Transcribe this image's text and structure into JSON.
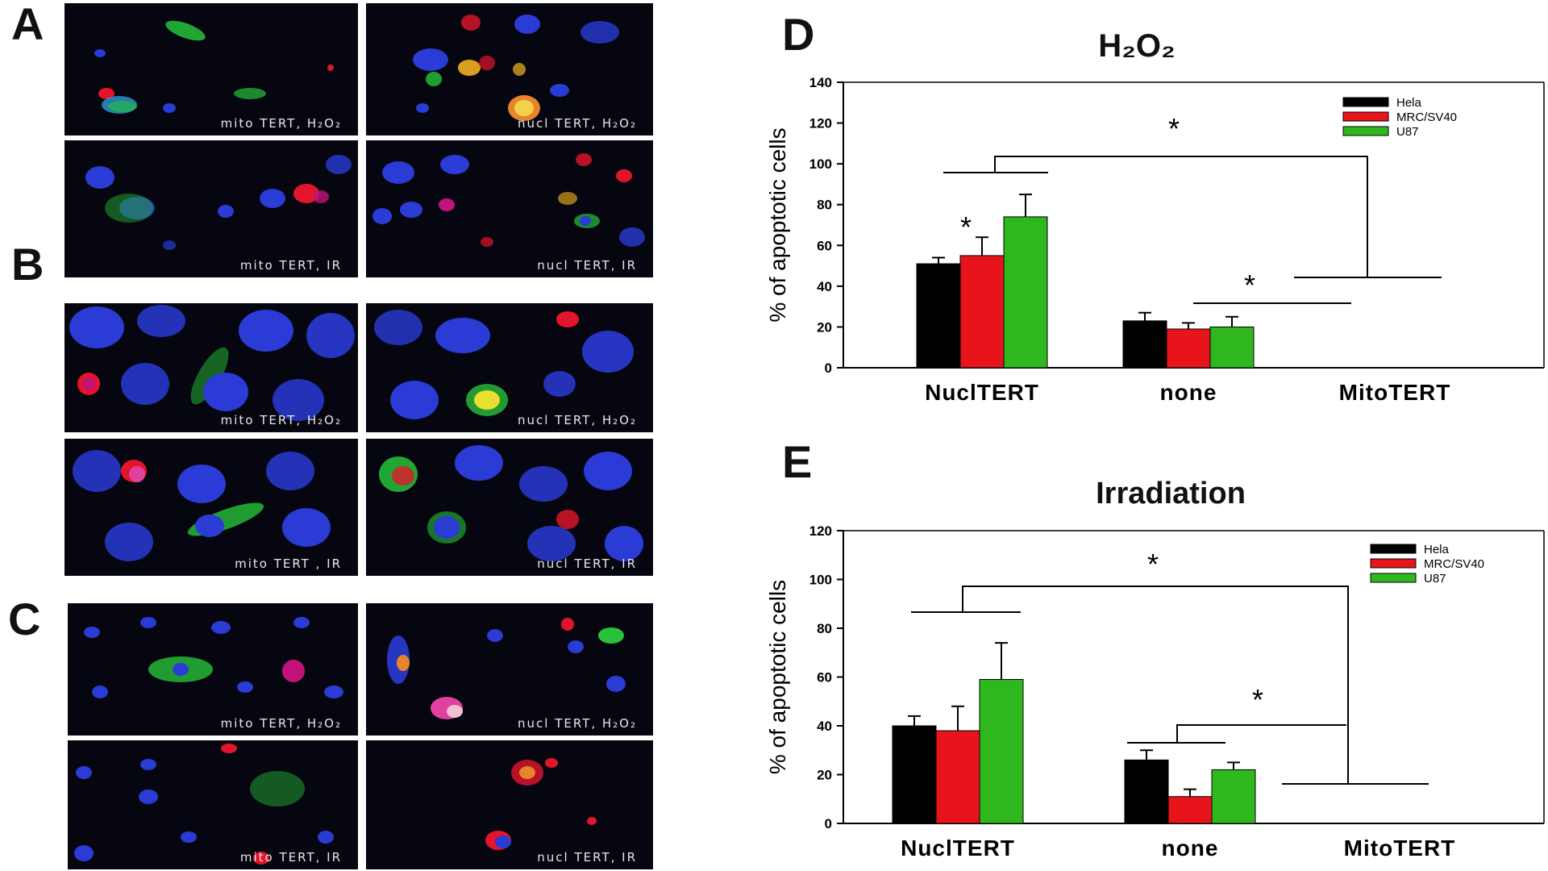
{
  "panels": {
    "A": {
      "letter": "A",
      "images": [
        {
          "caption": "mito TERT, H₂O₂"
        },
        {
          "caption": "nucl TERT, H₂O₂"
        },
        {
          "caption": "mito TERT, IR"
        },
        {
          "caption": "nucl TERT, IR"
        }
      ]
    },
    "B": {
      "letter": "B",
      "images": [
        {
          "caption": "mito TERT, H₂O₂"
        },
        {
          "caption": "nucl TERT, H₂O₂"
        },
        {
          "caption": "mito TERT , IR"
        },
        {
          "caption": "nucl TERT, IR"
        }
      ]
    },
    "C": {
      "letter": "C",
      "images": [
        {
          "caption": "mito TERT, H₂O₂"
        },
        {
          "caption": "nucl TERT, H₂O₂"
        },
        {
          "caption": "mito TERT, IR"
        },
        {
          "caption": "nucl TERT, IR"
        }
      ]
    }
  },
  "colors": {
    "hela": "#000000",
    "mrc": "#e8141b",
    "u87": "#2fb81e",
    "nucleus": "#2a3bd6",
    "mito_stain": "#27c23a",
    "apoptosis_stain": "#e3152b"
  },
  "chart_data": [
    {
      "letter": "D",
      "type": "bar",
      "title": "H₂O₂",
      "xlabel": "",
      "ylabel": "% of apoptotic cells",
      "ylim": [
        0,
        140
      ],
      "yticks": [
        "0",
        "20",
        "40",
        "60",
        "80",
        "100",
        "120",
        "140"
      ],
      "categories": [
        "NuclTERT",
        "none",
        "MitoTERT"
      ],
      "series": [
        {
          "name": "Hela",
          "color": "#000000",
          "values": [
            51,
            23,
            null
          ],
          "errors": [
            3,
            4,
            null
          ]
        },
        {
          "name": "MRC/SV40",
          "color": "#e8141b",
          "values": [
            55,
            19,
            null
          ],
          "errors": [
            9,
            3,
            null
          ]
        },
        {
          "name": "U87",
          "color": "#2fb81e",
          "values": [
            74,
            20,
            null
          ],
          "errors": [
            11,
            5,
            null
          ]
        }
      ],
      "significance": [
        "*",
        "*",
        "*"
      ],
      "legend_position": "top-right",
      "grid": false
    },
    {
      "letter": "E",
      "type": "bar",
      "title": "Irradiation",
      "xlabel": "",
      "ylabel": "% of apoptotic cells",
      "ylim": [
        0,
        120
      ],
      "yticks": [
        "0",
        "20",
        "40",
        "60",
        "80",
        "100",
        "120"
      ],
      "categories": [
        "NuclTERT",
        "none",
        "MitoTERT"
      ],
      "series": [
        {
          "name": "Hela",
          "color": "#000000",
          "values": [
            40,
            26,
            null
          ],
          "errors": [
            4,
            4,
            null
          ]
        },
        {
          "name": "MRC/SV40",
          "color": "#e8141b",
          "values": [
            38,
            11,
            null
          ],
          "errors": [
            10,
            3,
            null
          ]
        },
        {
          "name": "U87",
          "color": "#2fb81e",
          "values": [
            59,
            22,
            null
          ],
          "errors": [
            15,
            3,
            null
          ]
        }
      ],
      "significance": [
        "*",
        "*"
      ],
      "legend_position": "top-right",
      "grid": false
    }
  ]
}
